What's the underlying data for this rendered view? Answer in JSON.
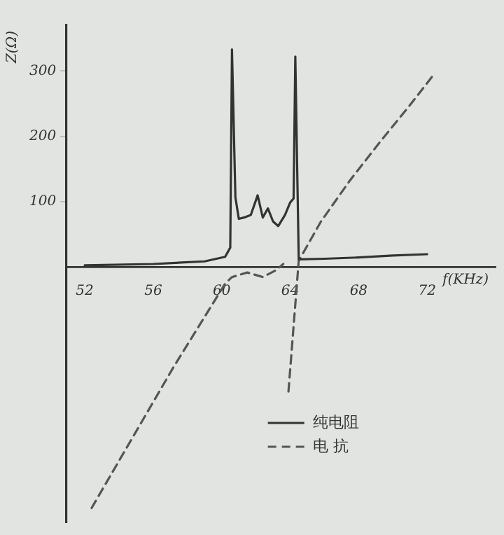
{
  "chart_data": {
    "type": "line",
    "xlabel": "f(KHz)",
    "ylabel": "Z(Ω)",
    "xlim": [
      50.9,
      76
    ],
    "xticks": [
      52,
      56,
      60,
      64,
      68,
      72
    ],
    "ylim": [
      -390,
      370
    ],
    "yticks": [
      100,
      200,
      300
    ],
    "grid": false,
    "legend": "bottom",
    "marker": "none",
    "series": [
      {
        "name": "纯电阻",
        "color": "#333333",
        "line_style": "solid",
        "x": [
          52,
          56,
          59,
          60.2,
          60.5,
          60.6,
          60.8,
          61,
          61.3,
          61.7,
          62.1,
          62.4,
          62.7,
          63,
          63.3,
          63.7,
          64,
          64.2,
          64.3,
          64.5,
          66,
          68,
          70,
          72
        ],
        "values": [
          3,
          5,
          9,
          16,
          30,
          333,
          107,
          74,
          76,
          80,
          110,
          76,
          90,
          70,
          63,
          80,
          99,
          105,
          322,
          12,
          13,
          15,
          18,
          20
        ]
      },
      {
        "name": "电 抗",
        "color": "#555555",
        "line_style": "dashed",
        "x": [
          52.4,
          57.2,
          59.8,
          60.2,
          60.6,
          61.5,
          62.4,
          63.2,
          63.6,
          63.8,
          63.9,
          64.5,
          65.8,
          67.5,
          69.2,
          71,
          72.4
        ],
        "values": [
          -368,
          -152,
          -42,
          -25,
          -15,
          -8,
          -15,
          -4,
          5,
          null,
          -190,
          10,
          70,
          133,
          190,
          248,
          295
        ]
      }
    ]
  }
}
